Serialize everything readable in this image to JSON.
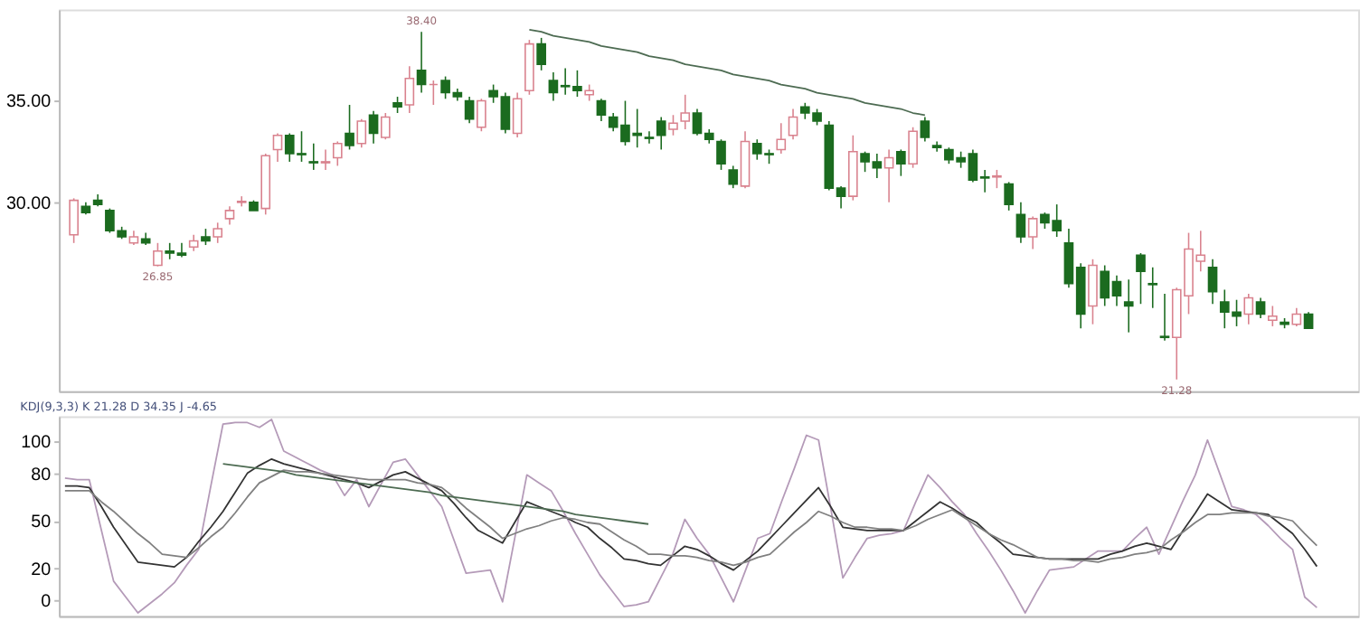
{
  "chart_data": [
    {
      "type": "candlestick",
      "categories": [
        null,
        null,
        null,
        null,
        null,
        null,
        null,
        null,
        null,
        null,
        null,
        null,
        null,
        null,
        null,
        null,
        null,
        null,
        null,
        null,
        null,
        null,
        null,
        null,
        null,
        null,
        null,
        null,
        null,
        null,
        null,
        null,
        null,
        null,
        null,
        null,
        null,
        null,
        null,
        null,
        null,
        null,
        null,
        null,
        null,
        null,
        null,
        null,
        null,
        null,
        null,
        null,
        null,
        null,
        null,
        null,
        null,
        null,
        null,
        null,
        null,
        null,
        null,
        null,
        null,
        null,
        null,
        null,
        null,
        null,
        null,
        null,
        null,
        null,
        null,
        null,
        null,
        null,
        null,
        null,
        null,
        null,
        null,
        null,
        null,
        null,
        null,
        null,
        null,
        null,
        null,
        null,
        null,
        null,
        null,
        null,
        null,
        null,
        null,
        null,
        null,
        null,
        null,
        null
      ],
      "ohlc": [
        [
          28.4,
          30.2,
          28.0,
          30.1
        ],
        [
          29.8,
          30.0,
          29.4,
          29.5
        ],
        [
          30.1,
          30.4,
          29.8,
          29.9
        ],
        [
          29.6,
          29.7,
          28.5,
          28.6
        ],
        [
          28.6,
          28.8,
          28.2,
          28.3
        ],
        [
          28.0,
          28.6,
          27.9,
          28.3
        ],
        [
          28.2,
          28.5,
          27.9,
          28.0
        ],
        [
          26.9,
          28.0,
          26.85,
          27.6
        ],
        [
          27.6,
          28.0,
          27.2,
          27.5
        ],
        [
          27.5,
          28.0,
          27.3,
          27.4
        ],
        [
          27.8,
          28.4,
          27.6,
          28.1
        ],
        [
          28.3,
          28.7,
          27.9,
          28.1
        ],
        [
          28.3,
          29.0,
          28.0,
          28.7
        ],
        [
          29.2,
          29.8,
          28.9,
          29.6
        ],
        [
          30.0,
          30.3,
          29.8,
          30.05
        ],
        [
          30.0,
          30.1,
          29.6,
          29.6
        ],
        [
          29.7,
          32.4,
          29.4,
          32.3
        ],
        [
          32.6,
          33.4,
          32.0,
          33.3
        ],
        [
          33.3,
          33.4,
          32.0,
          32.4
        ],
        [
          32.4,
          33.5,
          32.0,
          32.35
        ],
        [
          32.0,
          32.9,
          31.6,
          31.95
        ],
        [
          31.95,
          32.6,
          31.6,
          32.0
        ],
        [
          32.2,
          33.0,
          31.8,
          32.9
        ],
        [
          33.4,
          34.8,
          32.6,
          32.8
        ],
        [
          32.9,
          34.1,
          32.7,
          34.0
        ],
        [
          34.3,
          34.5,
          32.9,
          33.4
        ],
        [
          33.2,
          34.4,
          33.1,
          34.2
        ],
        [
          34.9,
          35.2,
          34.4,
          34.7
        ],
        [
          34.8,
          36.7,
          34.4,
          36.1
        ],
        [
          36.5,
          38.4,
          35.4,
          35.8
        ],
        [
          35.8,
          36.0,
          34.8,
          35.8
        ],
        [
          36.0,
          36.2,
          35.1,
          35.4
        ],
        [
          35.4,
          35.6,
          35.0,
          35.2
        ],
        [
          35.0,
          35.2,
          33.9,
          34.1
        ],
        [
          33.7,
          35.1,
          33.5,
          35.0
        ],
        [
          35.5,
          35.8,
          34.9,
          35.2
        ],
        [
          35.2,
          35.4,
          33.4,
          33.6
        ],
        [
          33.4,
          35.4,
          33.2,
          35.1
        ],
        [
          35.5,
          38.0,
          35.3,
          37.8
        ],
        [
          37.8,
          38.1,
          36.5,
          36.8
        ],
        [
          36.0,
          36.4,
          35.0,
          35.4
        ],
        [
          35.75,
          36.6,
          35.3,
          35.7
        ],
        [
          35.7,
          36.5,
          35.2,
          35.5
        ],
        [
          35.3,
          35.8,
          35.0,
          35.5
        ],
        [
          35.0,
          35.1,
          34.0,
          34.3
        ],
        [
          34.2,
          34.4,
          33.5,
          33.7
        ],
        [
          33.8,
          35.0,
          32.8,
          33.0
        ],
        [
          33.4,
          34.6,
          32.7,
          33.3
        ],
        [
          33.2,
          33.5,
          32.9,
          33.15
        ],
        [
          34.0,
          34.2,
          32.6,
          33.3
        ],
        [
          33.6,
          34.3,
          33.3,
          33.9
        ],
        [
          34.0,
          35.3,
          33.6,
          34.4
        ],
        [
          34.4,
          34.6,
          33.3,
          33.4
        ],
        [
          33.4,
          33.6,
          32.9,
          33.1
        ],
        [
          33.0,
          33.1,
          31.6,
          31.9
        ],
        [
          31.6,
          31.8,
          30.7,
          30.9
        ],
        [
          30.8,
          33.5,
          30.7,
          33.0
        ],
        [
          32.9,
          33.1,
          32.1,
          32.4
        ],
        [
          32.4,
          32.6,
          31.9,
          32.35
        ],
        [
          32.6,
          33.9,
          32.4,
          33.1
        ],
        [
          33.3,
          34.6,
          33.1,
          34.2
        ],
        [
          34.7,
          34.9,
          34.1,
          34.4
        ],
        [
          34.4,
          34.6,
          33.8,
          34.0
        ],
        [
          33.8,
          34.0,
          30.6,
          30.7
        ],
        [
          30.7,
          30.8,
          29.7,
          30.3
        ],
        [
          30.3,
          33.3,
          30.1,
          32.5
        ],
        [
          32.4,
          32.5,
          31.5,
          32.0
        ],
        [
          32.0,
          32.4,
          31.2,
          31.7
        ],
        [
          31.7,
          32.6,
          30.0,
          32.2
        ],
        [
          32.5,
          32.6,
          31.3,
          31.9
        ],
        [
          31.9,
          33.7,
          31.7,
          33.5
        ],
        [
          34.0,
          34.2,
          33.0,
          33.2
        ],
        [
          32.8,
          33.0,
          32.5,
          32.7
        ],
        [
          32.6,
          32.7,
          31.9,
          32.1
        ],
        [
          32.2,
          32.5,
          31.7,
          32.0
        ],
        [
          32.4,
          32.6,
          31.0,
          31.1
        ],
        [
          31.25,
          31.6,
          30.5,
          31.2
        ],
        [
          31.25,
          31.6,
          30.7,
          31.3
        ],
        [
          30.9,
          31.0,
          29.6,
          29.9
        ],
        [
          29.4,
          30.0,
          28.0,
          28.3
        ],
        [
          28.3,
          29.3,
          27.7,
          29.2
        ],
        [
          29.4,
          29.5,
          28.7,
          29.0
        ],
        [
          29.1,
          29.9,
          28.3,
          28.6
        ],
        [
          28.0,
          28.7,
          25.8,
          26.0
        ],
        [
          26.8,
          27.0,
          23.8,
          24.5
        ],
        [
          24.9,
          27.2,
          24.0,
          26.9
        ],
        [
          26.6,
          26.9,
          24.9,
          25.3
        ],
        [
          26.1,
          26.4,
          24.9,
          25.4
        ],
        [
          25.1,
          26.2,
          23.6,
          24.9
        ],
        [
          27.4,
          27.5,
          25.0,
          26.6
        ],
        [
          26.0,
          26.8,
          24.8,
          25.95
        ],
        [
          23.4,
          25.5,
          23.2,
          23.35
        ],
        [
          23.35,
          25.8,
          21.28,
          25.7
        ],
        [
          25.4,
          28.5,
          24.5,
          27.7
        ],
        [
          27.1,
          28.6,
          26.6,
          27.4
        ],
        [
          26.8,
          27.2,
          25.0,
          25.6
        ],
        [
          25.1,
          25.7,
          23.8,
          24.6
        ],
        [
          24.6,
          25.2,
          23.9,
          24.4
        ],
        [
          24.5,
          25.5,
          24.0,
          25.3
        ],
        [
          25.1,
          25.3,
          24.3,
          24.5
        ],
        [
          24.2,
          24.9,
          23.9,
          24.4
        ],
        [
          24.1,
          24.3,
          23.8,
          24.0
        ],
        [
          24.0,
          24.8,
          23.9,
          24.5
        ],
        [
          24.5,
          24.6,
          23.8,
          23.8
        ]
      ],
      "colors": [
        "#d9828e",
        "#1b6b1f",
        "#1b6b1f",
        "#1b6b1f",
        "#1b6b1f",
        "#d9828e",
        "#1b6b1f",
        "#d9828e",
        "#1b6b1f",
        "#1b6b1f",
        "#d9828e",
        "#1b6b1f",
        "#d9828e",
        "#d9828e",
        "#d9828e",
        "#1b6b1f",
        "#d9828e",
        "#d9828e",
        "#1b6b1f",
        "#1b6b1f",
        "#1b6b1f",
        "#d9828e",
        "#d9828e",
        "#1b6b1f",
        "#d9828e",
        "#1b6b1f",
        "#d9828e",
        "#1b6b1f",
        "#d9828e",
        "#1b6b1f",
        "#d9828e",
        "#1b6b1f",
        "#1b6b1f",
        "#1b6b1f",
        "#d9828e",
        "#1b6b1f",
        "#1b6b1f",
        "#d9828e",
        "#d9828e",
        "#1b6b1f",
        "#1b6b1f",
        "#1b6b1f",
        "#1b6b1f",
        "#d9828e",
        "#1b6b1f",
        "#1b6b1f",
        "#1b6b1f",
        "#1b6b1f",
        "#1b6b1f",
        "#1b6b1f",
        "#d9828e",
        "#d9828e",
        "#1b6b1f",
        "#1b6b1f",
        "#1b6b1f",
        "#1b6b1f",
        "#d9828e",
        "#1b6b1f",
        "#1b6b1f",
        "#d9828e",
        "#d9828e",
        "#1b6b1f",
        "#1b6b1f",
        "#1b6b1f",
        "#1b6b1f",
        "#d9828e",
        "#1b6b1f",
        "#1b6b1f",
        "#d9828e",
        "#1b6b1f",
        "#d9828e",
        "#1b6b1f",
        "#1b6b1f",
        "#1b6b1f",
        "#1b6b1f",
        "#1b6b1f",
        "#1b6b1f",
        "#d9828e",
        "#1b6b1f",
        "#1b6b1f",
        "#d9828e",
        "#1b6b1f",
        "#1b6b1f",
        "#1b6b1f",
        "#1b6b1f",
        "#d9828e",
        "#1b6b1f",
        "#1b6b1f",
        "#1b6b1f",
        "#1b6b1f",
        "#1b6b1f",
        "#1b6b1f",
        "#d9828e",
        "#d9828e",
        "#d9828e",
        "#1b6b1f",
        "#1b6b1f",
        "#1b6b1f",
        "#d9828e",
        "#1b6b1f",
        "#d9828e",
        "#1b6b1f",
        "#d9828e",
        "#1b6b1f"
      ],
      "series": [
        {
          "type": "line",
          "color": "#4d6b52",
          "values": [
            null,
            null,
            null,
            null,
            null,
            null,
            null,
            null,
            null,
            null,
            null,
            null,
            null,
            null,
            null,
            null,
            null,
            null,
            null,
            null,
            null,
            null,
            null,
            null,
            null,
            null,
            null,
            null,
            null,
            null,
            null,
            null,
            null,
            null,
            null,
            null,
            null,
            null,
            38.5,
            38.4,
            38.2,
            38.1,
            38.0,
            37.9,
            37.7,
            37.6,
            37.5,
            37.4,
            37.2,
            37.1,
            37.0,
            36.8,
            36.7,
            36.6,
            36.5,
            36.3,
            36.2,
            36.1,
            36.0,
            35.8,
            35.7,
            35.6,
            35.4,
            35.3,
            35.2,
            35.1,
            34.9,
            34.8,
            34.7,
            34.6,
            34.4,
            34.3,
            null,
            null,
            null,
            null,
            null,
            null,
            null,
            null,
            null,
            null,
            null,
            null,
            null,
            null,
            null,
            null,
            null,
            null,
            null,
            null,
            null,
            null,
            null,
            null,
            null,
            null,
            null,
            null,
            null,
            null,
            null,
            null
          ]
        }
      ],
      "ylim": [
        20.7,
        39.5
      ],
      "yticks": [
        {
          "value": 30,
          "label": "30.00"
        },
        {
          "value": 35,
          "label": "35.00"
        }
      ],
      "tick_labels": "y",
      "annotations": [
        {
          "text": "38.40",
          "y": 38.4
        },
        {
          "text": "26.85",
          "y": 26.85
        },
        {
          "text": "21.28",
          "y": 21.28
        }
      ]
    },
    {
      "type": "line",
      "title": "KDJ(9,3,3) K 21.28 D 34.35 J -4.65",
      "categories": [
        null,
        null,
        null,
        null,
        null,
        null,
        null,
        null,
        null,
        null,
        null,
        null,
        null,
        null,
        null,
        null,
        null,
        null,
        null,
        null,
        null,
        null,
        null,
        null,
        null,
        null,
        null,
        null,
        null,
        null,
        null,
        null,
        null,
        null,
        null,
        null,
        null,
        null,
        null,
        null,
        null,
        null,
        null,
        null,
        null,
        null,
        null,
        null,
        null,
        null,
        null,
        null,
        null,
        null,
        null,
        null,
        null,
        null,
        null,
        null,
        null,
        null,
        null,
        null,
        null,
        null,
        null,
        null,
        null,
        null,
        null,
        null,
        null,
        null,
        null,
        null,
        null,
        null,
        null,
        null,
        null,
        null,
        null,
        null,
        null,
        null,
        null,
        null,
        null,
        null,
        null,
        null,
        null,
        null,
        null,
        null,
        null,
        null,
        null,
        null,
        null,
        null,
        null,
        null
      ],
      "series": [
        {
          "color": "#b49ab8",
          "values": [
            77,
            76,
            76,
            44,
            12,
            2,
            -8,
            -2,
            4,
            11,
            22,
            32,
            72,
            111,
            112,
            112,
            109,
            114,
            94,
            90,
            86,
            82,
            79,
            66,
            76,
            59,
            73,
            87,
            89,
            79,
            69,
            59,
            38,
            17,
            18,
            19,
            -1,
            39,
            79,
            74,
            69,
            56,
            42,
            29,
            16,
            6,
            -4,
            -3,
            -1,
            14,
            29,
            51,
            39,
            29,
            14,
            -1,
            19,
            39,
            42,
            63,
            83,
            104,
            101,
            58,
            14,
            27,
            39,
            41,
            42,
            44,
            62,
            79,
            71,
            62,
            54,
            42,
            31,
            19,
            6,
            -8,
            6,
            19,
            20,
            21,
            26,
            31,
            31,
            31,
            39,
            46,
            29,
            46,
            63,
            79,
            101,
            80,
            59,
            57,
            54,
            47,
            39,
            32,
            2,
            -4.65
          ]
        },
        {
          "color": "#333333",
          "values": [
            72,
            72,
            71,
            59,
            46,
            35,
            24,
            23,
            22,
            21,
            27,
            37,
            46,
            56,
            68,
            80,
            85,
            89,
            86,
            84,
            82,
            80,
            78,
            76,
            74,
            71,
            75,
            79,
            81,
            77,
            73,
            69,
            61,
            52,
            44,
            40,
            36,
            49,
            62,
            59,
            56,
            53,
            49,
            46,
            39,
            33,
            26,
            25,
            23,
            22,
            28,
            34,
            32,
            28,
            23,
            19,
            25,
            31,
            39,
            47,
            55,
            63,
            71,
            59,
            46,
            45,
            44,
            44,
            44,
            44,
            50,
            56,
            62,
            58,
            53,
            49,
            42,
            36,
            29,
            28,
            27,
            26,
            26,
            26,
            26,
            26,
            29,
            31,
            34,
            36,
            34,
            32,
            44,
            55,
            67,
            62,
            57,
            56,
            55,
            54,
            48,
            42,
            32,
            21.28
          ]
        },
        {
          "color": "#808080",
          "values": [
            69,
            69,
            69,
            62,
            56,
            49,
            42,
            36,
            29,
            28,
            27,
            33,
            40,
            46,
            55,
            65,
            74,
            78,
            82,
            81,
            81,
            80,
            79,
            78,
            77,
            76,
            76,
            76,
            76,
            74,
            73,
            71,
            65,
            58,
            52,
            46,
            39,
            42,
            45,
            47,
            50,
            52,
            51,
            49,
            48,
            43,
            38,
            34,
            29,
            29,
            28,
            28,
            27,
            25,
            24,
            22,
            24,
            27,
            29,
            36,
            43,
            49,
            56,
            53,
            49,
            46,
            46,
            45,
            45,
            44,
            47,
            51,
            54,
            57,
            52,
            47,
            42,
            38,
            35,
            31,
            27,
            26,
            26,
            25,
            25,
            24,
            26,
            27,
            29,
            30,
            32,
            38,
            43,
            49,
            54,
            54,
            55,
            55,
            55,
            53,
            52,
            50,
            42,
            34.35
          ]
        },
        {
          "color": "#4d6b52",
          "values": [
            null,
            null,
            null,
            null,
            null,
            null,
            null,
            null,
            null,
            null,
            null,
            null,
            null,
            86,
            85,
            84,
            83,
            82,
            81,
            79,
            78,
            77,
            76,
            75,
            74,
            73,
            72,
            71,
            70,
            69,
            68,
            66,
            65,
            64,
            63,
            62,
            61,
            60,
            59,
            58,
            57,
            56,
            54,
            53,
            52,
            51,
            50,
            49,
            48,
            null,
            null,
            null,
            null,
            null,
            null,
            null,
            null,
            null,
            null,
            null,
            null,
            null,
            null,
            null,
            null,
            null,
            null,
            null,
            null,
            null,
            null,
            null,
            null,
            null,
            null,
            null,
            null,
            null,
            null,
            null,
            null,
            null,
            null,
            null,
            null,
            null,
            null,
            null,
            null,
            null,
            null,
            null,
            null,
            null,
            null,
            null,
            null,
            null,
            null,
            null,
            null,
            null,
            null,
            null
          ]
        }
      ],
      "ylim": [
        -10,
        116
      ],
      "yticks": [
        0,
        20,
        50,
        80,
        100
      ],
      "tick_labels": "y"
    }
  ]
}
